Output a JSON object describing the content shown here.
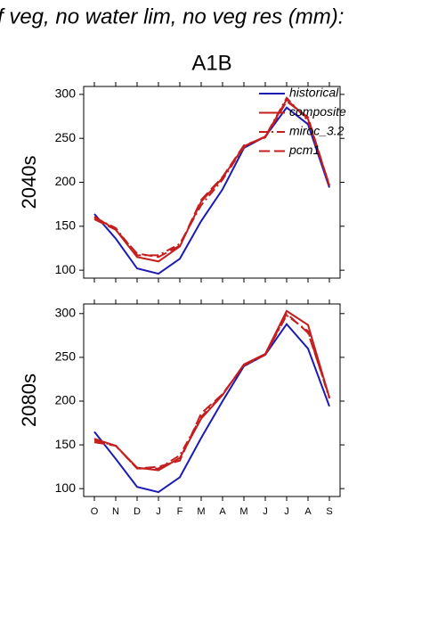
{
  "title": "f veg, no water lim, no veg res (mm):",
  "subtitle": "A1B",
  "chart_data": [
    {
      "type": "line",
      "ylabel": "2040s",
      "categories": [
        null,
        null,
        null,
        null,
        null,
        null,
        null,
        null,
        null,
        null,
        null,
        null
      ],
      "ylim": [
        91,
        309
      ],
      "yticks": [
        100,
        150,
        200,
        250,
        300
      ],
      "legend": "upper right",
      "series": [
        {
          "name": "historical",
          "color": "#1c1cb4",
          "dash": "solid",
          "values": [
            164,
            136,
            102,
            96,
            113,
            156,
            192,
            239,
            252,
            285,
            266,
            194
          ]
        },
        {
          "name": "composite",
          "color": "#c41e1e",
          "dash": "solid",
          "values": [
            161,
            146,
            115,
            110,
            127,
            178,
            205,
            241,
            252,
            294,
            272,
            196
          ]
        },
        {
          "name": "miroc_3.2",
          "color": "#c41e1e",
          "dash": "dashdot",
          "values": [
            160,
            148,
            117,
            117,
            130,
            174,
            203,
            240,
            252,
            296,
            270,
            197
          ]
        },
        {
          "name": "pcm1",
          "color": "#c41e1e",
          "dash": "dash",
          "values": [
            158,
            146,
            119,
            115,
            128,
            180,
            206,
            242,
            251,
            292,
            274,
            196
          ]
        }
      ]
    },
    {
      "type": "line",
      "ylabel": "2080s",
      "categories": [
        "O",
        "N",
        "D",
        "J",
        "F",
        "M",
        "A",
        "M",
        "J",
        "J",
        "A",
        "S"
      ],
      "ylim": [
        91,
        311
      ],
      "yticks": [
        100,
        150,
        200,
        250,
        300
      ],
      "series": [
        {
          "color": "#1c1cb4",
          "dash": "solid",
          "values": [
            165,
            134,
            102,
            96,
            113,
            158,
            200,
            240,
            253,
            288,
            260,
            194
          ]
        },
        {
          "color": "#c41e1e",
          "dash": "solid",
          "values": [
            157,
            149,
            124,
            121,
            135,
            180,
            207,
            242,
            254,
            303,
            287,
            204
          ]
        },
        {
          "color": "#c41e1e",
          "dash": "dashdot",
          "values": [
            155,
            149,
            123,
            123,
            138,
            182,
            208,
            241,
            253,
            298,
            280,
            203
          ]
        },
        {
          "color": "#c41e1e",
          "dash": "dash",
          "values": [
            153,
            149,
            123,
            125,
            132,
            186,
            208,
            241,
            253,
            300,
            278,
            205
          ]
        }
      ]
    }
  ]
}
